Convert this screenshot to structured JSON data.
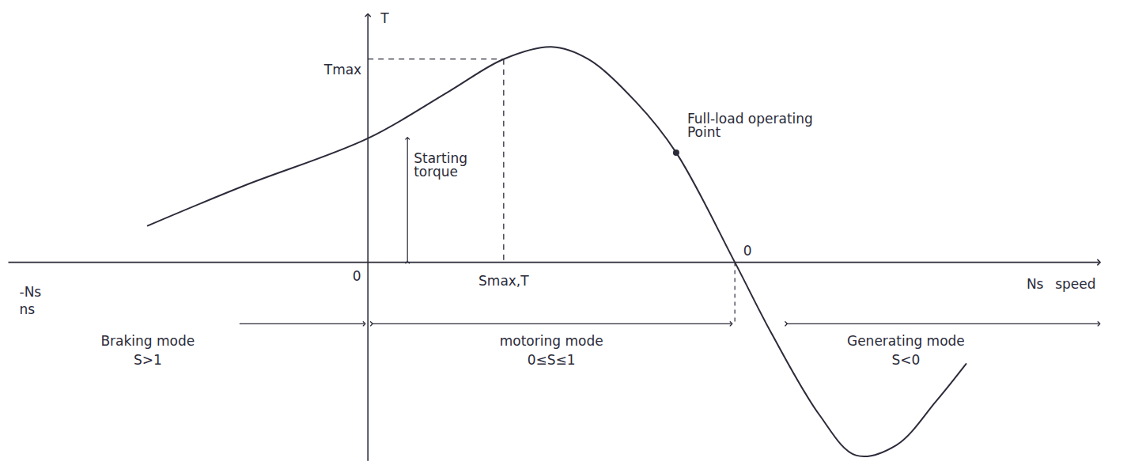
{
  "chart_data": {
    "type": "line",
    "x_label": "speed",
    "y_label": "T",
    "x": [
      -0.6,
      -0.34,
      0,
      0.22,
      0.37,
      0.5,
      0.6,
      0.73,
      0.84,
      1.0,
      1.1,
      1.23,
      1.33,
      1.44,
      1.55,
      1.63
    ],
    "values": [
      0.18,
      0.375,
      0.61,
      0.84,
      1.0,
      1.06,
      1.0,
      0.79,
      0.54,
      0,
      -0.35,
      -0.75,
      -0.95,
      -0.9,
      -0.68,
      -0.5
    ],
    "xlim": [
      -0.98,
      2.1
    ],
    "ylim": [
      -1.0,
      1.25
    ],
    "xticks": [],
    "yticks": [],
    "tick_labels": false,
    "color": "#2b2b3a",
    "tmax": {
      "label": "Tmax",
      "x": 0.37,
      "y": 1.0
    },
    "smax_label": "Smax,T",
    "starting_torque": {
      "label": "Starting torque",
      "y": 0.61
    },
    "full_load": {
      "label": "Full-load operating Point",
      "x": 0.84,
      "y": 0.54
    },
    "origin_label": "0",
    "sync": {
      "label": "0",
      "x": 1.0
    },
    "x_end_label": "Ns",
    "x_start_labels": [
      "-Ns",
      "ns"
    ],
    "modes": [
      {
        "name": "Braking mode",
        "slip": "S>1"
      },
      {
        "name": "motoring mode",
        "slip": "0≤S≤1"
      },
      {
        "name": "Generating mode",
        "slip": "S<0"
      }
    ]
  }
}
